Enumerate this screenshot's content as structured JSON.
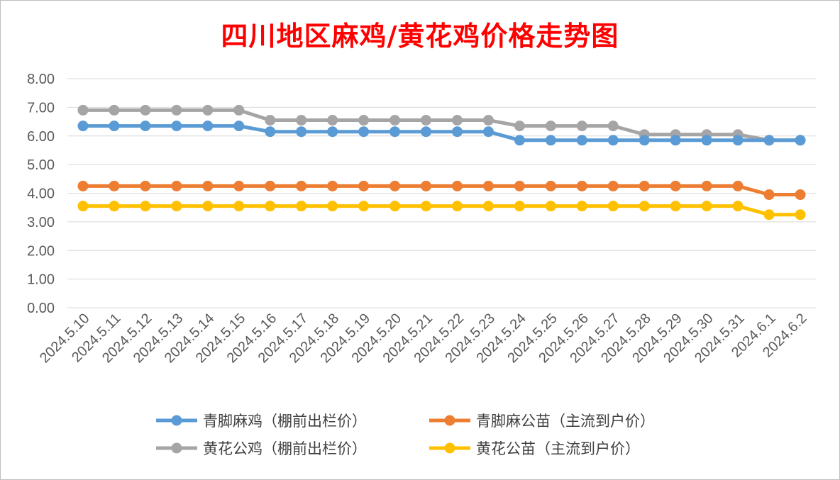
{
  "chart_data": {
    "type": "line",
    "title": "四川地区麻鸡/黄花鸡价格走势图",
    "xlabel": "",
    "ylabel": "",
    "ylim": [
      0,
      8
    ],
    "yticks": [
      "0.00",
      "1.00",
      "2.00",
      "3.00",
      "4.00",
      "5.00",
      "6.00",
      "7.00",
      "8.00"
    ],
    "grid": true,
    "legend_position": "bottom",
    "categories": [
      "2024.5.10",
      "2024.5.11",
      "2024.5.12",
      "2024.5.13",
      "2024.5.14",
      "2024.5.15",
      "2024.5.16",
      "2024.5.17",
      "2024.5.18",
      "2024.5.19",
      "2024.5.20",
      "2024.5.21",
      "2024.5.22",
      "2024.5.23",
      "2024.5.24",
      "2024.5.25",
      "2024.5.26",
      "2024.5.27",
      "2024.5.28",
      "2024.5.29",
      "2024.5.30",
      "2024.5.31",
      "2024.6.1",
      "2024.6.2"
    ],
    "series": [
      {
        "name": "青脚麻鸡（棚前出栏价）",
        "color": "#5b9bd5",
        "values": [
          6.35,
          6.35,
          6.35,
          6.35,
          6.35,
          6.35,
          6.15,
          6.15,
          6.15,
          6.15,
          6.15,
          6.15,
          6.15,
          6.15,
          5.85,
          5.85,
          5.85,
          5.85,
          5.85,
          5.85,
          5.85,
          5.85,
          5.85,
          5.85
        ]
      },
      {
        "name": "青脚麻公苗（主流到户价）",
        "color": "#ed7d31",
        "values": [
          4.25,
          4.25,
          4.25,
          4.25,
          4.25,
          4.25,
          4.25,
          4.25,
          4.25,
          4.25,
          4.25,
          4.25,
          4.25,
          4.25,
          4.25,
          4.25,
          4.25,
          4.25,
          4.25,
          4.25,
          4.25,
          4.25,
          3.95,
          3.95
        ]
      },
      {
        "name": "黄花公鸡（棚前出栏价）",
        "color": "#a5a5a5",
        "values": [
          6.9,
          6.9,
          6.9,
          6.9,
          6.9,
          6.9,
          6.55,
          6.55,
          6.55,
          6.55,
          6.55,
          6.55,
          6.55,
          6.55,
          6.35,
          6.35,
          6.35,
          6.35,
          6.05,
          6.05,
          6.05,
          6.05,
          5.85,
          5.85
        ]
      },
      {
        "name": "黄花公苗（主流到户价）",
        "color": "#ffc000",
        "values": [
          3.55,
          3.55,
          3.55,
          3.55,
          3.55,
          3.55,
          3.55,
          3.55,
          3.55,
          3.55,
          3.55,
          3.55,
          3.55,
          3.55,
          3.55,
          3.55,
          3.55,
          3.55,
          3.55,
          3.55,
          3.55,
          3.55,
          3.25,
          3.25
        ]
      }
    ]
  }
}
